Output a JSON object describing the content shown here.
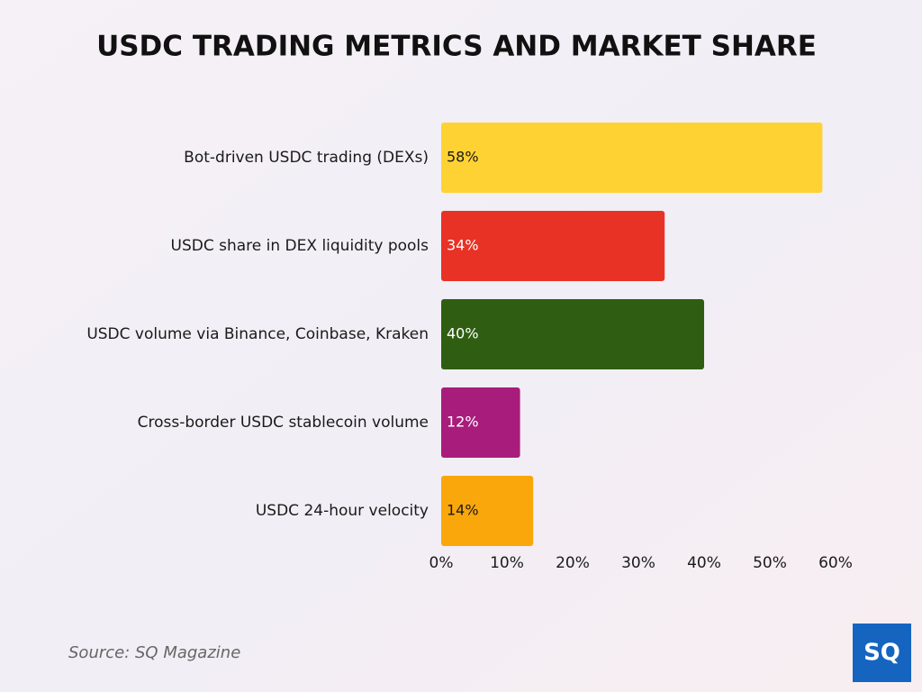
{
  "chart_data": {
    "type": "bar",
    "orientation": "horizontal",
    "title": "USDC TRADING METRICS AND MARKET SHARE",
    "categories": [
      "Bot-driven USDC trading (DEXs)",
      "USDC share in DEX liquidity pools",
      "USDC volume via Binance, Coinbase, Kraken",
      "Cross-border USDC stablecoin volume",
      "USDC 24-hour velocity"
    ],
    "values": [
      58,
      34,
      40,
      12,
      14
    ],
    "value_labels": [
      "58%",
      "34%",
      "40%",
      "12%",
      "14%"
    ],
    "colors": [
      "#ffd233",
      "#e83225",
      "#2f5e12",
      "#a81c7c",
      "#f9a70b"
    ],
    "xlim": [
      0,
      60
    ],
    "xticks": [
      {
        "value": 0,
        "label": "0%"
      },
      {
        "value": 10,
        "label": "10%"
      },
      {
        "value": 20,
        "label": "20%"
      },
      {
        "value": 30,
        "label": "30%"
      },
      {
        "value": 40,
        "label": "40%"
      },
      {
        "value": 50,
        "label": "50%"
      },
      {
        "value": 60,
        "label": "60%"
      }
    ],
    "grid": false,
    "source": "Source: SQ Magazine",
    "logo": "SQ"
  }
}
